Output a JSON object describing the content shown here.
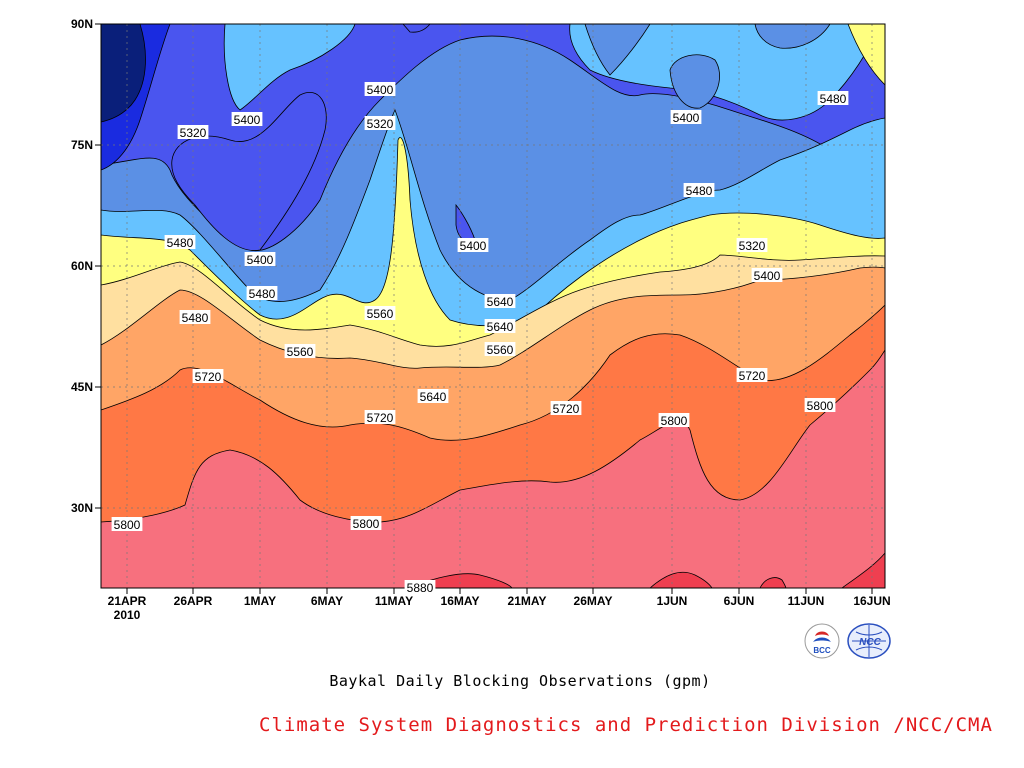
{
  "chart_data": {
    "type": "heatmap",
    "subtype": "filled-contour",
    "title": "Baykal Daily Blocking Observations (gpm)",
    "x_ticks": [
      "21APR",
      "26APR",
      "1MAY",
      "6MAY",
      "11MAY",
      "16MAY",
      "21MAY",
      "26MAY",
      "1JUN",
      "6JUN",
      "11JUN",
      "16JUN"
    ],
    "x_year_label": "2010",
    "y_ticks": [
      "90N",
      "75N",
      "60N",
      "45N",
      "30N"
    ],
    "levels": [
      5240,
      5320,
      5400,
      5480,
      5560,
      5640,
      5720,
      5800,
      5880
    ],
    "level_colors": [
      "#0a1f7a",
      "#1a2be0",
      "#4a55ef",
      "#5b90e5",
      "#66c2ff",
      "#ffff80",
      "#ffe0a0",
      "#ffa566",
      "#ff7845",
      "#f7707e",
      "#ef3f50"
    ],
    "contour_labels": [
      "5400",
      "5320",
      "5400",
      "5400",
      "5480",
      "5320",
      "5480",
      "5400",
      "5400",
      "5480",
      "5480",
      "5560",
      "5640",
      "5640",
      "5320",
      "5400",
      "5480",
      "5560",
      "5560",
      "5720",
      "5640",
      "5720",
      "5720",
      "5720",
      "5800",
      "5800",
      "5800",
      "5800",
      "5880"
    ]
  },
  "caption": "Baykal Daily Blocking Observations (gpm)",
  "credit": "Climate System Diagnostics and Prediction Division /NCC/CMA",
  "logos": {
    "left_text": "BCC",
    "right_text": "NCC"
  }
}
